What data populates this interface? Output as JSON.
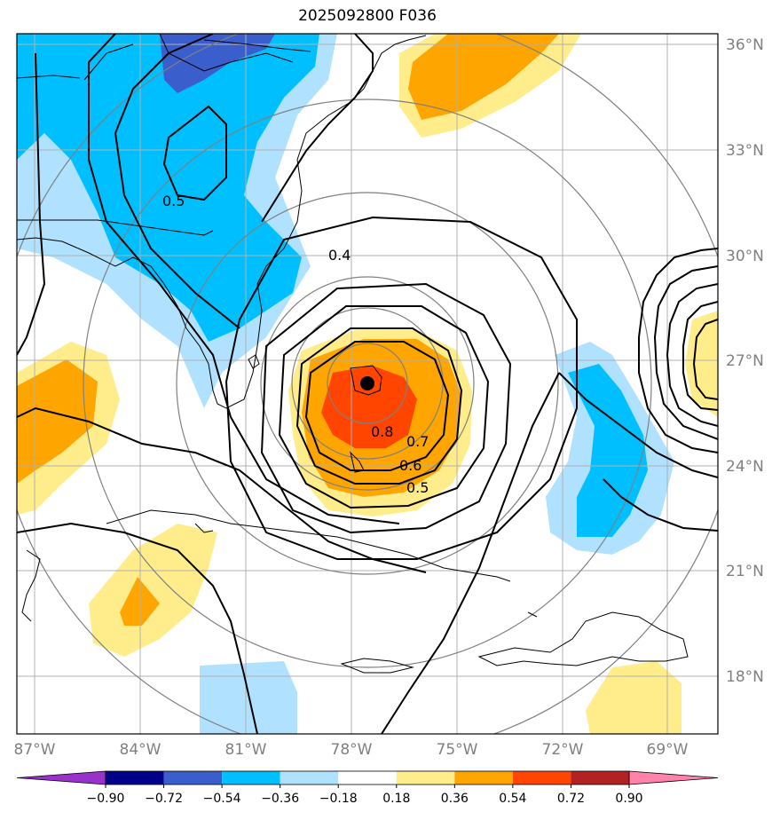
{
  "title": "2025092800 F036",
  "map": {
    "lat_ticks": [
      {
        "lat": 36,
        "label": "36°N"
      },
      {
        "lat": 33,
        "label": "33°N"
      },
      {
        "lat": 30,
        "label": "30°N"
      },
      {
        "lat": 27,
        "label": "27°N"
      },
      {
        "lat": 24,
        "label": "24°N"
      },
      {
        "lat": 21,
        "label": "21°N"
      },
      {
        "lat": 18,
        "label": "18°N"
      }
    ],
    "lon_ticks": [
      {
        "lon": -87,
        "label": "87°W"
      },
      {
        "lon": -84,
        "label": "84°W"
      },
      {
        "lon": -81,
        "label": "81°W"
      },
      {
        "lon": -78,
        "label": "78°W"
      },
      {
        "lon": -75,
        "label": "75°W"
      },
      {
        "lon": -72,
        "label": "72°W"
      },
      {
        "lon": -69,
        "label": "69°W"
      }
    ],
    "center_marker": {
      "lon": -77.5,
      "lat": 26.3
    },
    "contour_labels": [
      {
        "text": "0.5",
        "lon": -83.0,
        "lat": 31.8
      },
      {
        "text": "0.4",
        "lon": -78.3,
        "lat": 29.9
      },
      {
        "text": "0.8",
        "lon": -77.0,
        "lat": 24.9
      },
      {
        "text": "0.7",
        "lon": -76.0,
        "lat": 24.6
      },
      {
        "text": "0.6",
        "lon": -76.3,
        "lat": 23.9
      },
      {
        "text": "0.5",
        "lon": -75.9,
        "lat": 23.3
      }
    ]
  },
  "colorbar": {
    "colors": [
      "#9932cc",
      "#00008b",
      "#3a5fcd",
      "#00bfff",
      "#b0e2ff",
      "#ffffff",
      "#ffec8b",
      "#ffa500",
      "#ff4500",
      "#b22222",
      "#ff82ab"
    ],
    "ticks": [
      "−0.90",
      "−0.72",
      "−0.54",
      "−0.36",
      "−0.18",
      "0.18",
      "0.36",
      "0.54",
      "0.72",
      "0.90"
    ]
  }
}
